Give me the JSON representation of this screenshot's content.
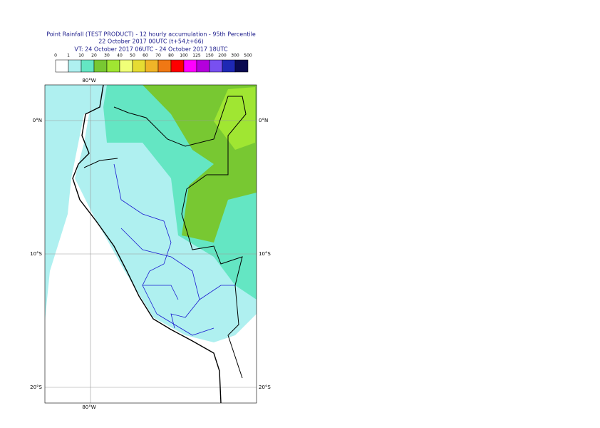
{
  "header": {
    "title": "Point Rainfall (TEST PRODUCT) - 12 hourly accumulation - 95th Percentile",
    "base_time": "22 October 2017 00UTC (t+54,t+66)",
    "valid_time": "VT: 24 October 2017 06UTC - 24 October 2017 18UTC"
  },
  "legend": {
    "labels": [
      "0",
      "1",
      "10",
      "20",
      "30",
      "40",
      "50",
      "60",
      "70",
      "80",
      "100",
      "125",
      "150",
      "200",
      "300",
      "500"
    ],
    "colors": [
      "#ffffff",
      "#aff0f0",
      "#64e6c3",
      "#78c832",
      "#a0e632",
      "#f0ff78",
      "#e6dc32",
      "#f0b428",
      "#f07814",
      "#ff0000",
      "#ff00ff",
      "#b400dc",
      "#7850f0",
      "#1e28b4",
      "#0a0a50"
    ]
  },
  "map": {
    "longitude_labels_top": [
      "80°W"
    ],
    "longitude_labels_bottom": [
      "80°W"
    ],
    "latitude_labels_left": [
      "0°N",
      "10°S",
      "20°S"
    ],
    "latitude_labels_right": [
      "0°N",
      "10°S",
      "20°S"
    ]
  }
}
